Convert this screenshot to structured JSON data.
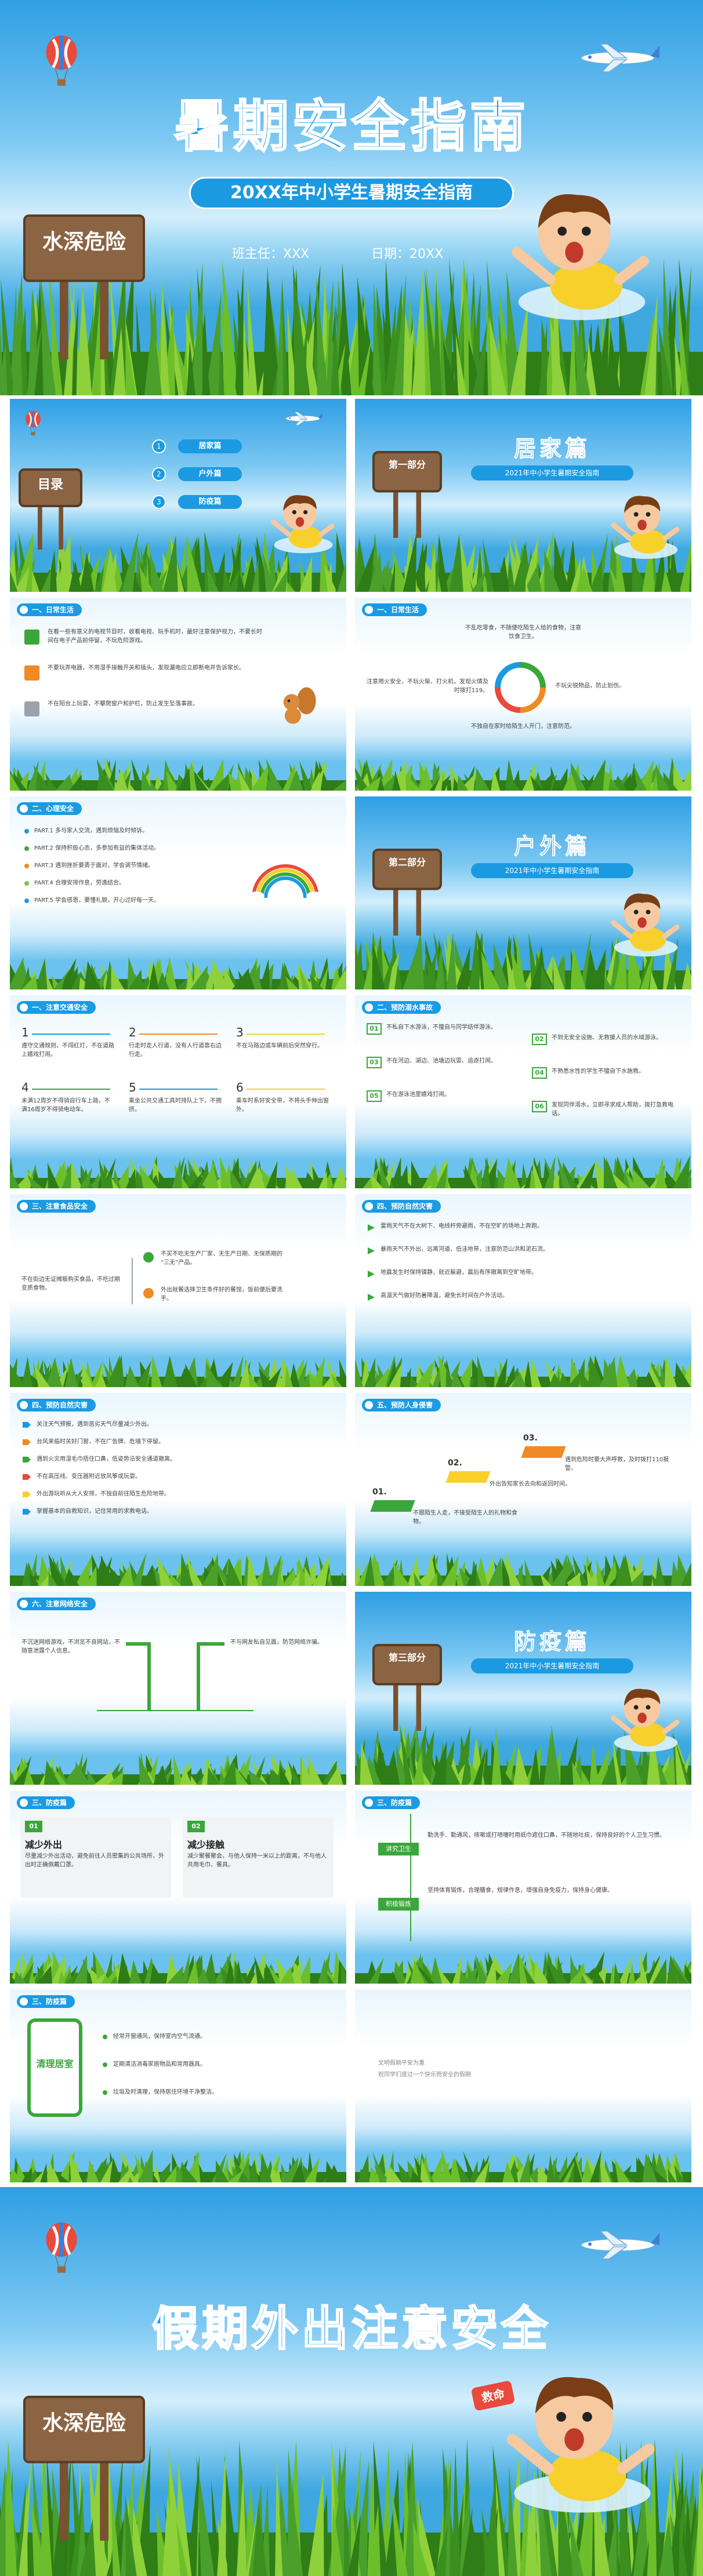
{
  "cover": {
    "title": "暑期安全指南",
    "subtitle": "20XX年中小学生暑期安全指南",
    "teacher": "班主任：XXX",
    "date": "日期：20XX",
    "sign": "水深危险"
  },
  "toc": {
    "title": "目录",
    "items": [
      {
        "num": "1",
        "label": "居家篇"
      },
      {
        "num": "2",
        "label": "户外篇"
      },
      {
        "num": "3",
        "label": "防疫篇"
      }
    ]
  },
  "part1": {
    "tag": "第一部分",
    "title": "居家篇",
    "subtitle": "2021年中小学生暑期安全指南"
  },
  "daily1": {
    "heading": "一、日常生活",
    "items": [
      "在看一些有意义的电视节目时，收看电视、玩手机时，最好注意保护视力，不要长时间在电子产品前停留，不玩危险游戏。",
      "不要玩弄电器，不用湿手接触开关和插头，发现漏电应立即断电并告诉家长。",
      "不在阳台上玩耍，不攀爬窗户和护栏，防止发生坠落事故。"
    ]
  },
  "daily2": {
    "heading": "一、日常生活",
    "notes": [
      "不乱吃零食，不随便吃陌生人给的食物，注意饮食卫生。",
      "注意用火安全，不玩火柴、打火机，发现火情及时拨打119。",
      "不玩尖锐物品，防止划伤。",
      "不独自在家时给陌生人开门，注意防范。"
    ]
  },
  "mind": {
    "heading": "二、心理安全",
    "items": [
      "PART.1 多与家人交流，遇到烦恼及时倾诉。",
      "PART.2 保持积极心态，多参加有益的集体活动。",
      "PART.3 遇到挫折要勇于面对，学会调节情绪。",
      "PART.4 合理安排作息，劳逸结合。",
      "PART.5 学会感恩，要懂礼貌，开心过好每一天。"
    ]
  },
  "part2": {
    "tag": "第二部分",
    "title": "户外篇",
    "subtitle": "2021年中小学生暑期安全指南"
  },
  "traffic": {
    "heading": "一、注意交通安全",
    "items": [
      {
        "num": "1",
        "text": "遵守交通规则，不闯红灯，不在道路上嬉戏打闹。"
      },
      {
        "num": "2",
        "text": "行走时走人行道，没有人行道靠右边行走。"
      },
      {
        "num": "3",
        "text": "不在马路边或车辆前后突然穿行。"
      },
      {
        "num": "4",
        "text": "未满12周岁不得骑自行车上路，不满16周岁不得骑电动车。"
      },
      {
        "num": "5",
        "text": "乘坐公共交通工具时排队上下，不拥挤。"
      },
      {
        "num": "6",
        "text": "乘车时系好安全带，不将头手伸出窗外。"
      }
    ]
  },
  "drown": {
    "heading": "二、预防溺水事故",
    "items": [
      {
        "num": "01",
        "text": "不私自下水游泳，不擅自与同学结伴游泳。"
      },
      {
        "num": "02",
        "text": "不到无安全设施、无救援人员的水域游泳。"
      },
      {
        "num": "03",
        "text": "不在河边、湖边、池塘边玩耍、追逐打闹。"
      },
      {
        "num": "04",
        "text": "不熟悉水性的学生不擅自下水施救。"
      },
      {
        "num": "05",
        "text": "不在游泳池里嬉戏打闹。"
      },
      {
        "num": "06",
        "text": "发现同伴溺水，立即寻求成人帮助，拨打急救电话。"
      }
    ]
  },
  "food": {
    "heading": "三、注意食品安全",
    "lead": "不在街边无证摊贩购买食品，不吃过期变质食物。",
    "items": [
      "不买不吃无生产厂家、无生产日期、无保质期的“三无”产品。",
      "外出就餐选择卫生条件好的餐馆，饭前便后要洗手。"
    ]
  },
  "disaster1": {
    "heading": "四、预防自然灾害",
    "items": [
      "雷雨天气不在大树下、电线杆旁避雨，不在空旷的场地上奔跑。",
      "暴雨天气不外出，远离河道、低洼地带，注意防范山洪和泥石流。",
      "地震发生时保持镇静，就近躲避，震后有序撤离到空旷地带。",
      "高温天气做好防暑降温，避免长时间在户外活动。"
    ]
  },
  "disaster2": {
    "heading": "四、预防自然灾害",
    "items": [
      "关注天气预报，遇到恶劣天气尽量减少外出。",
      "台风来临时关好门窗，不在广告牌、危墙下停留。",
      "遇到火灾用湿毛巾捂住口鼻，低姿势沿安全通道撤离。",
      "不在高压线、变压器附近放风筝或玩耍。",
      "外出游玩听从大人安排，不独自前往陌生危险地带。",
      "掌握基本的自救知识，记住常用的求救电话。"
    ]
  },
  "assault": {
    "heading": "五、预防人身侵害",
    "steps": [
      {
        "num": "01.",
        "text": "不跟陌生人走，不接受陌生人的礼物和食物。"
      },
      {
        "num": "02.",
        "text": "外出告知家长去向和返回时间。"
      },
      {
        "num": "03.",
        "text": "遇到危险时要大声呼救，及时拨打110报警。"
      }
    ]
  },
  "net": {
    "heading": "六、注意网络安全",
    "items": [
      "不沉迷网络游戏，不浏览不良网站，不随意泄露个人信息。",
      "不与网友私自见面，防范网络诈骗。"
    ]
  },
  "part3": {
    "tag": "第三部分",
    "title": "防疫篇",
    "subtitle": "2021年中小学生暑期安全指南"
  },
  "epi1": {
    "heading": "三、防疫篇",
    "cards": [
      {
        "num": "01",
        "title": "减少外出",
        "text": "尽量减少外出活动，避免前往人员密集的公共场所，外出时正确佩戴口罩。"
      },
      {
        "num": "02",
        "title": "减少接触",
        "text": "减少聚餐聚会，与他人保持一米以上的距离，不与他人共用毛巾、餐具。"
      }
    ]
  },
  "epi2": {
    "heading": "三、防疫篇",
    "rows": [
      {
        "label": "讲究卫生",
        "text": "勤洗手、勤通风，咳嗽或打喷嚏时用纸巾遮住口鼻，不随地吐痰，保持良好的个人卫生习惯。"
      },
      {
        "label": "积极锻炼",
        "text": "坚持体育锻炼，合理膳食，规律作息，增强自身免疫力，保持身心健康。"
      }
    ]
  },
  "epi3": {
    "heading": "三、防疫篇",
    "phone": "清理居室",
    "items": [
      "经常开窗通风，保持室内空气流通。",
      "定期清洁消毒家居物品和常用器具。",
      "垃圾及时清理，保持居住环境干净整洁。"
    ]
  },
  "ending": {
    "lines": [
      "文明假期平安为重",
      "祝同学们度过一个快乐而安全的假期"
    ]
  },
  "closing": {
    "title": "假期外出注意安全",
    "sign": "水深危险",
    "shout": "救命"
  }
}
